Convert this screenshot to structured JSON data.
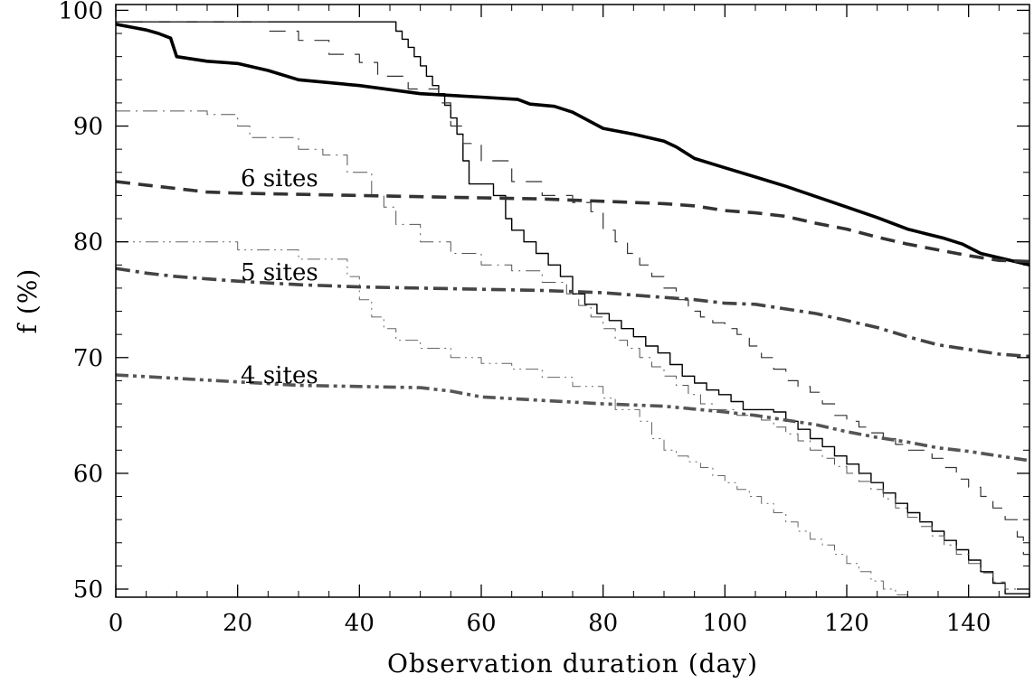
{
  "chart_data": {
    "type": "line",
    "xlabel": "Observation duration (day)",
    "ylabel": "f (%)",
    "xlim": [
      0,
      150
    ],
    "ylim": [
      49.3,
      100.5
    ],
    "x_ticks": [
      "0",
      "20",
      "40",
      "60",
      "80",
      "100",
      "120",
      "140"
    ],
    "y_ticks": [
      "50",
      "60",
      "70",
      "80",
      "90",
      "100"
    ],
    "grid": false,
    "annotations": [
      {
        "text": "6 sites",
        "x": 20.5,
        "y": 84.8
      },
      {
        "text": "5 sites",
        "x": 20.5,
        "y": 76.7
      },
      {
        "text": "4 sites",
        "x": 20.5,
        "y": 67.8
      }
    ],
    "series": [
      {
        "style": "thin-solid",
        "color": "#000000",
        "points": [
          [
            0,
            99
          ],
          [
            45,
            99
          ],
          [
            46,
            98.2
          ],
          [
            47,
            97.5
          ],
          [
            48,
            96.8
          ],
          [
            49,
            96
          ],
          [
            50,
            95.2
          ],
          [
            51,
            94.3
          ],
          [
            52,
            93.5
          ],
          [
            53,
            92.8
          ],
          [
            54,
            91.8
          ],
          [
            55,
            90.7
          ],
          [
            56,
            89.3
          ],
          [
            57,
            87
          ],
          [
            58,
            85
          ],
          [
            62,
            84
          ],
          [
            64,
            82
          ],
          [
            65,
            81
          ],
          [
            67,
            80
          ],
          [
            69,
            79
          ],
          [
            71,
            78
          ],
          [
            73,
            77
          ],
          [
            75,
            75.5
          ],
          [
            77,
            74.6
          ],
          [
            79,
            73.8
          ],
          [
            81,
            73.2
          ],
          [
            83,
            72.5
          ],
          [
            85,
            71.8
          ],
          [
            87,
            71
          ],
          [
            89,
            70.4
          ],
          [
            91,
            69.4
          ],
          [
            93,
            68.4
          ],
          [
            95,
            67.8
          ],
          [
            97,
            67.2
          ],
          [
            99,
            66.8
          ],
          [
            101,
            66.2
          ],
          [
            103,
            65.5
          ],
          [
            108,
            65.3
          ],
          [
            110,
            64.5
          ],
          [
            112,
            63.8
          ],
          [
            114,
            63
          ],
          [
            116,
            62.3
          ],
          [
            118,
            61.5
          ],
          [
            120,
            60.8
          ],
          [
            122,
            60
          ],
          [
            124,
            59.2
          ],
          [
            126,
            58.3
          ],
          [
            128,
            57.4
          ],
          [
            130,
            56.6
          ],
          [
            132,
            55.8
          ],
          [
            134,
            55
          ],
          [
            136,
            54.2
          ],
          [
            138,
            53.4
          ],
          [
            140,
            52.5
          ],
          [
            142,
            51.5
          ],
          [
            144,
            50.5
          ],
          [
            146,
            49.6
          ],
          [
            150,
            49.3
          ]
        ]
      },
      {
        "style": "thin-dash",
        "color": "#333333",
        "points": [
          [
            0,
            99
          ],
          [
            20,
            99
          ],
          [
            25,
            98.2
          ],
          [
            30,
            97.4
          ],
          [
            35,
            96.2
          ],
          [
            40,
            95.5
          ],
          [
            43,
            94.3
          ],
          [
            48,
            93.2
          ],
          [
            53,
            92
          ],
          [
            55,
            90
          ],
          [
            57,
            88.5
          ],
          [
            60,
            87
          ],
          [
            65,
            85.2
          ],
          [
            70,
            84
          ],
          [
            75,
            83.4
          ],
          [
            78,
            82.6
          ],
          [
            80,
            81
          ],
          [
            82,
            80
          ],
          [
            84,
            79
          ],
          [
            86,
            78
          ],
          [
            88,
            77
          ],
          [
            90,
            76
          ],
          [
            92,
            75
          ],
          [
            94,
            74
          ],
          [
            96,
            73.5
          ],
          [
            98,
            73
          ],
          [
            100,
            72.5
          ],
          [
            102,
            72
          ],
          [
            104,
            71
          ],
          [
            106,
            70
          ],
          [
            108,
            69
          ],
          [
            110,
            68
          ],
          [
            112,
            67.5
          ],
          [
            114,
            67
          ],
          [
            116,
            66
          ],
          [
            118,
            65
          ],
          [
            120,
            64.5
          ],
          [
            122,
            64
          ],
          [
            124,
            63.5
          ],
          [
            126,
            63
          ],
          [
            128,
            62.5
          ],
          [
            130,
            62
          ],
          [
            134,
            61.3
          ],
          [
            136,
            60.5
          ],
          [
            138,
            59.5
          ],
          [
            140,
            58.8
          ],
          [
            142,
            58
          ],
          [
            144,
            57
          ],
          [
            146,
            56
          ],
          [
            148,
            54.5
          ],
          [
            149,
            53
          ],
          [
            150,
            51.5
          ]
        ]
      },
      {
        "style": "thin-dashdot",
        "color": "#555555",
        "points": [
          [
            0,
            91.3
          ],
          [
            15,
            91
          ],
          [
            20,
            90
          ],
          [
            22,
            89
          ],
          [
            30,
            88
          ],
          [
            34,
            87.5
          ],
          [
            38,
            86
          ],
          [
            42,
            84
          ],
          [
            44,
            83
          ],
          [
            46,
            81.5
          ],
          [
            50,
            80
          ],
          [
            55,
            79
          ],
          [
            60,
            78
          ],
          [
            65,
            77.5
          ],
          [
            70,
            76.5
          ],
          [
            74,
            75.5
          ],
          [
            76,
            74.5
          ],
          [
            78,
            73.5
          ],
          [
            80,
            72.5
          ],
          [
            82,
            71.5
          ],
          [
            84,
            70.8
          ],
          [
            86,
            70
          ],
          [
            88,
            69.2
          ],
          [
            90,
            68.4
          ],
          [
            92,
            67.6
          ],
          [
            94,
            66.8
          ],
          [
            96,
            66
          ],
          [
            98,
            65.5
          ],
          [
            102,
            65
          ],
          [
            106,
            64.6
          ],
          [
            108,
            64
          ],
          [
            110,
            63.4
          ],
          [
            112,
            62.8
          ],
          [
            114,
            62
          ],
          [
            116,
            61.3
          ],
          [
            118,
            60.6
          ],
          [
            120,
            60
          ],
          [
            122,
            59.3
          ],
          [
            124,
            58.6
          ],
          [
            126,
            57.8
          ],
          [
            128,
            57
          ],
          [
            130,
            56.2
          ],
          [
            132,
            55.4
          ],
          [
            134,
            54.6
          ],
          [
            136,
            53.8
          ],
          [
            138,
            53
          ],
          [
            140,
            52.2
          ],
          [
            142,
            51.4
          ],
          [
            144,
            50.6
          ],
          [
            146,
            50
          ],
          [
            150,
            49.5
          ]
        ]
      },
      {
        "style": "thin-dashdotdot",
        "color": "#666666",
        "points": [
          [
            0,
            80
          ],
          [
            20,
            79.3
          ],
          [
            30,
            78.5
          ],
          [
            38,
            77
          ],
          [
            40,
            75
          ],
          [
            42,
            73.5
          ],
          [
            44,
            72.5
          ],
          [
            46,
            71.5
          ],
          [
            50,
            70.8
          ],
          [
            55,
            70
          ],
          [
            60,
            69.5
          ],
          [
            65,
            69
          ],
          [
            70,
            68.3
          ],
          [
            75,
            67.5
          ],
          [
            80,
            66.5
          ],
          [
            82,
            65.5
          ],
          [
            86,
            64.5
          ],
          [
            88,
            63
          ],
          [
            90,
            62
          ],
          [
            92,
            61.5
          ],
          [
            94,
            61
          ],
          [
            96,
            60.5
          ],
          [
            98,
            59.8
          ],
          [
            100,
            59.2
          ],
          [
            102,
            58.6
          ],
          [
            104,
            58
          ],
          [
            106,
            57.4
          ],
          [
            108,
            56.6
          ],
          [
            110,
            55.8
          ],
          [
            112,
            55
          ],
          [
            114,
            54.3
          ],
          [
            116,
            53.8
          ],
          [
            118,
            53
          ],
          [
            120,
            52.2
          ],
          [
            122,
            51.5
          ],
          [
            124,
            50.7
          ],
          [
            126,
            50
          ],
          [
            128,
            49.5
          ],
          [
            130,
            49.3
          ]
        ]
      },
      {
        "style": "thick-solid",
        "color": "#000000",
        "points": [
          [
            0,
            98.8
          ],
          [
            3,
            98.5
          ],
          [
            5,
            98.3
          ],
          [
            7,
            98
          ],
          [
            9,
            97.6
          ],
          [
            10,
            96
          ],
          [
            15,
            95.6
          ],
          [
            20,
            95.4
          ],
          [
            25,
            94.8
          ],
          [
            30,
            94
          ],
          [
            40,
            93.5
          ],
          [
            50,
            92.8
          ],
          [
            60,
            92.5
          ],
          [
            66,
            92.3
          ],
          [
            68,
            91.9
          ],
          [
            72,
            91.7
          ],
          [
            75,
            91.2
          ],
          [
            80,
            89.8
          ],
          [
            85,
            89.3
          ],
          [
            90,
            88.7
          ],
          [
            92,
            88.2
          ],
          [
            95,
            87.2
          ],
          [
            100,
            86.4
          ],
          [
            105,
            85.6
          ],
          [
            110,
            84.8
          ],
          [
            115,
            83.9
          ],
          [
            120,
            83
          ],
          [
            125,
            82.1
          ],
          [
            130,
            81.1
          ],
          [
            133,
            80.7
          ],
          [
            136,
            80.3
          ],
          [
            139,
            79.8
          ],
          [
            142,
            79
          ],
          [
            146,
            78.5
          ],
          [
            150,
            78
          ]
        ]
      },
      {
        "style": "thick-dash",
        "color": "#333333",
        "points": [
          [
            0,
            85.2
          ],
          [
            5,
            84.9
          ],
          [
            10,
            84.6
          ],
          [
            15,
            84.3
          ],
          [
            20,
            84.2
          ],
          [
            30,
            84.1
          ],
          [
            40,
            84
          ],
          [
            50,
            83.9
          ],
          [
            60,
            83.8
          ],
          [
            70,
            83.7
          ],
          [
            80,
            83.5
          ],
          [
            90,
            83.3
          ],
          [
            95,
            83.1
          ],
          [
            100,
            82.7
          ],
          [
            105,
            82.5
          ],
          [
            110,
            82.2
          ],
          [
            115,
            81.6
          ],
          [
            120,
            81.1
          ],
          [
            125,
            80.4
          ],
          [
            130,
            79.8
          ],
          [
            135,
            79.3
          ],
          [
            140,
            78.8
          ],
          [
            145,
            78.4
          ],
          [
            150,
            78.3
          ]
        ]
      },
      {
        "style": "thick-dashdot",
        "color": "#444444",
        "points": [
          [
            0,
            77.7
          ],
          [
            5,
            77.3
          ],
          [
            10,
            77
          ],
          [
            15,
            76.8
          ],
          [
            20,
            76.6
          ],
          [
            30,
            76.3
          ],
          [
            40,
            76.1
          ],
          [
            50,
            76
          ],
          [
            60,
            75.9
          ],
          [
            70,
            75.8
          ],
          [
            80,
            75.6
          ],
          [
            90,
            75.2
          ],
          [
            95,
            75
          ],
          [
            100,
            74.7
          ],
          [
            105,
            74.6
          ],
          [
            110,
            74.2
          ],
          [
            115,
            73.8
          ],
          [
            120,
            73.2
          ],
          [
            125,
            72.6
          ],
          [
            130,
            71.8
          ],
          [
            135,
            71.1
          ],
          [
            140,
            70.7
          ],
          [
            145,
            70.3
          ],
          [
            150,
            70.1
          ]
        ]
      },
      {
        "style": "thick-dashdotdot",
        "color": "#555555",
        "points": [
          [
            0,
            68.5
          ],
          [
            10,
            68.2
          ],
          [
            20,
            67.9
          ],
          [
            30,
            67.6
          ],
          [
            40,
            67.5
          ],
          [
            50,
            67.4
          ],
          [
            55,
            67.1
          ],
          [
            60,
            66.6
          ],
          [
            70,
            66.3
          ],
          [
            80,
            66
          ],
          [
            90,
            65.8
          ],
          [
            100,
            65.3
          ],
          [
            105,
            65
          ],
          [
            110,
            64.6
          ],
          [
            115,
            64.2
          ],
          [
            120,
            63.6
          ],
          [
            125,
            63.1
          ],
          [
            130,
            62.7
          ],
          [
            135,
            62.2
          ],
          [
            140,
            61.9
          ],
          [
            145,
            61.5
          ],
          [
            150,
            61.1
          ]
        ]
      }
    ]
  }
}
